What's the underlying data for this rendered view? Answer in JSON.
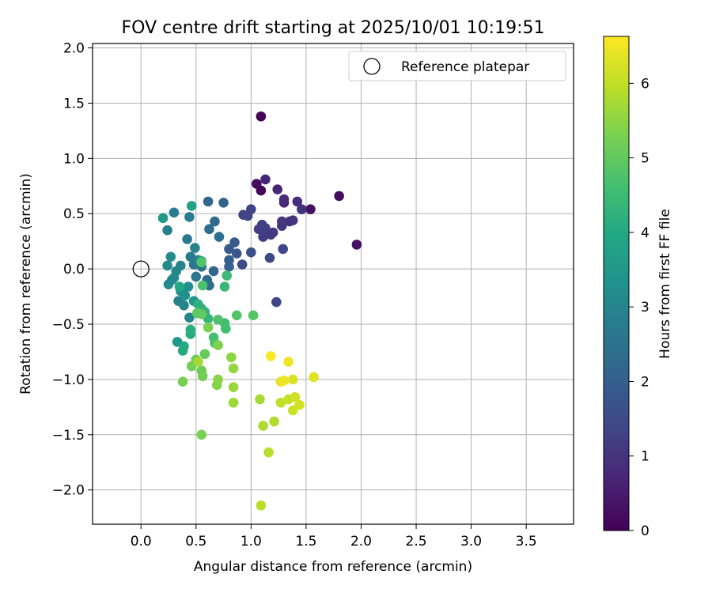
{
  "chart_data": {
    "type": "scatter",
    "title": "FOV centre drift starting at 2025/10/01 10:19:51",
    "xlabel": "Angular distance from reference (arcmin)",
    "ylabel": "Rotation from reference (arcmin)",
    "xlim": [
      -0.44,
      3.93
    ],
    "ylim": [
      -2.31,
      2.04
    ],
    "xticks": [
      0.0,
      0.5,
      1.0,
      1.5,
      2.0,
      2.5,
      3.0,
      3.5
    ],
    "xtick_labels": [
      "0.0",
      "0.5",
      "1.0",
      "1.5",
      "2.0",
      "2.5",
      "3.0",
      "3.5"
    ],
    "yticks": [
      2.0,
      1.5,
      1.0,
      0.5,
      0.0,
      -0.5,
      -1.0,
      -1.5,
      -2.0
    ],
    "ytick_labels": [
      "2.0",
      "1.5",
      "1.0",
      "0.5",
      "0.0",
      "−0.5",
      "−1.0",
      "−1.5",
      "−2.0"
    ],
    "grid": true,
    "legend": {
      "position": "top-right",
      "entries": [
        {
          "label": "Reference platepar",
          "marker": "hollow-circle"
        }
      ]
    },
    "reference_point": {
      "x": 0.0,
      "y": 0.0
    },
    "colorbar": {
      "label": "Hours from first FF file",
      "range": [
        0,
        6.63
      ],
      "ticks": [
        0,
        1,
        2,
        3,
        4,
        5,
        6
      ],
      "tick_labels": [
        "0",
        "1",
        "2",
        "3",
        "4",
        "5",
        "6"
      ],
      "colormap": "viridis"
    },
    "points": [
      {
        "x": 1.09,
        "y": 1.38,
        "t": 0.05
      },
      {
        "x": 1.8,
        "y": 0.66,
        "t": 0.2
      },
      {
        "x": 1.96,
        "y": 0.22,
        "t": 0.25
      },
      {
        "x": 1.54,
        "y": 0.54,
        "t": 0.3
      },
      {
        "x": 1.05,
        "y": 0.77,
        "t": 0.25
      },
      {
        "x": 1.09,
        "y": 0.71,
        "t": 0.1
      },
      {
        "x": 1.13,
        "y": 0.81,
        "t": 0.7
      },
      {
        "x": 1.24,
        "y": 0.72,
        "t": 0.75
      },
      {
        "x": 1.3,
        "y": 0.6,
        "t": 0.8
      },
      {
        "x": 1.3,
        "y": 0.63,
        "t": 0.85
      },
      {
        "x": 1.42,
        "y": 0.61,
        "t": 0.9
      },
      {
        "x": 1.46,
        "y": 0.54,
        "t": 0.95
      },
      {
        "x": 1.35,
        "y": 0.43,
        "t": 1.0
      },
      {
        "x": 1.38,
        "y": 0.44,
        "t": 1.0
      },
      {
        "x": 1.28,
        "y": 0.43,
        "t": 1.05
      },
      {
        "x": 1.28,
        "y": 0.39,
        "t": 1.05
      },
      {
        "x": 1.18,
        "y": 0.31,
        "t": 1.1
      },
      {
        "x": 1.2,
        "y": 0.33,
        "t": 1.1
      },
      {
        "x": 1.11,
        "y": 0.29,
        "t": 1.15
      },
      {
        "x": 1.13,
        "y": 0.37,
        "t": 1.2
      },
      {
        "x": 1.07,
        "y": 0.36,
        "t": 1.2
      },
      {
        "x": 1.1,
        "y": 0.4,
        "t": 1.25
      },
      {
        "x": 1.0,
        "y": 0.54,
        "t": 1.3
      },
      {
        "x": 0.93,
        "y": 0.49,
        "t": 1.3
      },
      {
        "x": 0.97,
        "y": 0.48,
        "t": 1.35
      },
      {
        "x": 1.29,
        "y": 0.18,
        "t": 1.4
      },
      {
        "x": 1.17,
        "y": 0.1,
        "t": 1.45
      },
      {
        "x": 1.23,
        "y": -0.3,
        "t": 1.4
      },
      {
        "x": 0.92,
        "y": 0.04,
        "t": 1.5
      },
      {
        "x": 1.0,
        "y": 0.15,
        "t": 1.6
      },
      {
        "x": 0.87,
        "y": 0.14,
        "t": 1.8
      },
      {
        "x": 0.85,
        "y": 0.24,
        "t": 1.9
      },
      {
        "x": 0.8,
        "y": 0.18,
        "t": 1.9
      },
      {
        "x": 0.8,
        "y": 0.08,
        "t": 2.0
      },
      {
        "x": 0.8,
        "y": 0.02,
        "t": 2.05
      },
      {
        "x": 0.75,
        "y": 0.6,
        "t": 2.1
      },
      {
        "x": 0.61,
        "y": 0.61,
        "t": 2.2
      },
      {
        "x": 0.67,
        "y": 0.43,
        "t": 2.3
      },
      {
        "x": 0.62,
        "y": 0.36,
        "t": 2.35
      },
      {
        "x": 0.71,
        "y": 0.29,
        "t": 2.4
      },
      {
        "x": 0.66,
        "y": -0.02,
        "t": 2.25
      },
      {
        "x": 0.6,
        "y": -0.1,
        "t": 2.3
      },
      {
        "x": 0.62,
        "y": -0.15,
        "t": 2.4
      },
      {
        "x": 0.55,
        "y": 0.02,
        "t": 2.5
      },
      {
        "x": 0.5,
        "y": -0.07,
        "t": 2.55
      },
      {
        "x": 0.48,
        "y": 0.04,
        "t": 2.6
      },
      {
        "x": 0.45,
        "y": 0.11,
        "t": 2.65
      },
      {
        "x": 0.42,
        "y": 0.27,
        "t": 2.7
      },
      {
        "x": 0.44,
        "y": 0.47,
        "t": 2.75
      },
      {
        "x": 0.3,
        "y": 0.51,
        "t": 2.8
      },
      {
        "x": 0.24,
        "y": 0.35,
        "t": 2.85
      },
      {
        "x": 0.49,
        "y": 0.19,
        "t": 2.9
      },
      {
        "x": 0.52,
        "y": 0.08,
        "t": 2.95
      },
      {
        "x": 0.36,
        "y": 0.03,
        "t": 3.0
      },
      {
        "x": 0.32,
        "y": -0.02,
        "t": 3.0
      },
      {
        "x": 0.28,
        "y": -0.1,
        "t": 3.05
      },
      {
        "x": 0.25,
        "y": -0.14,
        "t": 3.1
      },
      {
        "x": 0.3,
        "y": -0.08,
        "t": 3.1
      },
      {
        "x": 0.24,
        "y": 0.03,
        "t": 3.15
      },
      {
        "x": 0.27,
        "y": 0.11,
        "t": 3.2
      },
      {
        "x": 0.34,
        "y": -0.29,
        "t": 2.9
      },
      {
        "x": 0.39,
        "y": -0.33,
        "t": 3.0
      },
      {
        "x": 0.44,
        "y": -0.44,
        "t": 3.0
      },
      {
        "x": 0.36,
        "y": -0.2,
        "t": 3.2
      },
      {
        "x": 0.4,
        "y": -0.24,
        "t": 3.3
      },
      {
        "x": 0.43,
        "y": -0.16,
        "t": 3.3
      },
      {
        "x": 0.48,
        "y": -0.29,
        "t": 3.4
      },
      {
        "x": 0.33,
        "y": -0.66,
        "t": 3.5
      },
      {
        "x": 0.2,
        "y": 0.46,
        "t": 3.6
      },
      {
        "x": 0.46,
        "y": 0.57,
        "t": 3.8
      },
      {
        "x": 0.55,
        "y": 0.07,
        "t": 3.9
      },
      {
        "x": 0.35,
        "y": -0.16,
        "t": 3.95
      },
      {
        "x": 0.39,
        "y": -0.7,
        "t": 4.0
      },
      {
        "x": 0.38,
        "y": -0.74,
        "t": 4.05
      },
      {
        "x": 0.45,
        "y": -0.59,
        "t": 4.1
      },
      {
        "x": 0.45,
        "y": -0.55,
        "t": 4.15
      },
      {
        "x": 0.52,
        "y": -0.32,
        "t": 4.2
      },
      {
        "x": 0.55,
        "y": -0.36,
        "t": 4.25
      },
      {
        "x": 0.58,
        "y": -0.39,
        "t": 4.3
      },
      {
        "x": 0.61,
        "y": -0.45,
        "t": 4.35
      },
      {
        "x": 0.76,
        "y": -0.16,
        "t": 4.4
      },
      {
        "x": 0.78,
        "y": -0.06,
        "t": 4.5
      },
      {
        "x": 0.76,
        "y": -0.49,
        "t": 4.55
      },
      {
        "x": 0.77,
        "y": -0.54,
        "t": 4.6
      },
      {
        "x": 0.66,
        "y": -0.62,
        "t": 4.65
      },
      {
        "x": 0.67,
        "y": -0.67,
        "t": 4.7
      },
      {
        "x": 0.7,
        "y": -0.46,
        "t": 4.75
      },
      {
        "x": 0.87,
        "y": -0.42,
        "t": 4.8
      },
      {
        "x": 1.02,
        "y": -0.42,
        "t": 4.85
      },
      {
        "x": 0.55,
        "y": 0.06,
        "t": 4.8
      },
      {
        "x": 0.56,
        "y": -0.15,
        "t": 4.7
      },
      {
        "x": 0.51,
        "y": -0.4,
        "t": 4.95
      },
      {
        "x": 0.55,
        "y": -0.41,
        "t": 5.0
      },
      {
        "x": 0.58,
        "y": -0.77,
        "t": 5.05
      },
      {
        "x": 0.5,
        "y": -0.82,
        "t": 5.1
      },
      {
        "x": 0.55,
        "y": -0.92,
        "t": 5.15
      },
      {
        "x": 0.56,
        "y": -0.97,
        "t": 5.2
      },
      {
        "x": 0.46,
        "y": -0.88,
        "t": 5.2
      },
      {
        "x": 0.38,
        "y": -1.02,
        "t": 5.25
      },
      {
        "x": 0.55,
        "y": -1.5,
        "t": 5.25
      },
      {
        "x": 0.61,
        "y": -0.53,
        "t": 5.3
      },
      {
        "x": 0.7,
        "y": -0.69,
        "t": 5.35
      },
      {
        "x": 0.69,
        "y": -1.05,
        "t": 5.4
      },
      {
        "x": 0.7,
        "y": -1.0,
        "t": 5.45
      },
      {
        "x": 0.82,
        "y": -0.8,
        "t": 5.5
      },
      {
        "x": 0.84,
        "y": -0.9,
        "t": 5.55
      },
      {
        "x": 0.84,
        "y": -1.07,
        "t": 5.6
      },
      {
        "x": 0.84,
        "y": -1.21,
        "t": 5.65
      },
      {
        "x": 0.52,
        "y": -0.84,
        "t": 5.7
      },
      {
        "x": 1.08,
        "y": -1.18,
        "t": 5.75
      },
      {
        "x": 1.11,
        "y": -1.42,
        "t": 5.8
      },
      {
        "x": 1.21,
        "y": -1.38,
        "t": 5.85
      },
      {
        "x": 1.16,
        "y": -1.66,
        "t": 5.9
      },
      {
        "x": 1.09,
        "y": -2.14,
        "t": 5.95
      },
      {
        "x": 1.27,
        "y": -1.21,
        "t": 6.0
      },
      {
        "x": 1.34,
        "y": -1.18,
        "t": 6.05
      },
      {
        "x": 1.38,
        "y": -1.28,
        "t": 6.1
      },
      {
        "x": 1.4,
        "y": -1.16,
        "t": 6.15
      },
      {
        "x": 1.44,
        "y": -1.23,
        "t": 6.2
      },
      {
        "x": 1.38,
        "y": -1.0,
        "t": 6.25
      },
      {
        "x": 1.57,
        "y": -0.98,
        "t": 6.3
      },
      {
        "x": 1.27,
        "y": -1.02,
        "t": 6.4
      },
      {
        "x": 1.3,
        "y": -1.01,
        "t": 6.45
      },
      {
        "x": 1.34,
        "y": -0.84,
        "t": 6.5
      },
      {
        "x": 1.18,
        "y": -0.79,
        "t": 6.6
      }
    ]
  }
}
